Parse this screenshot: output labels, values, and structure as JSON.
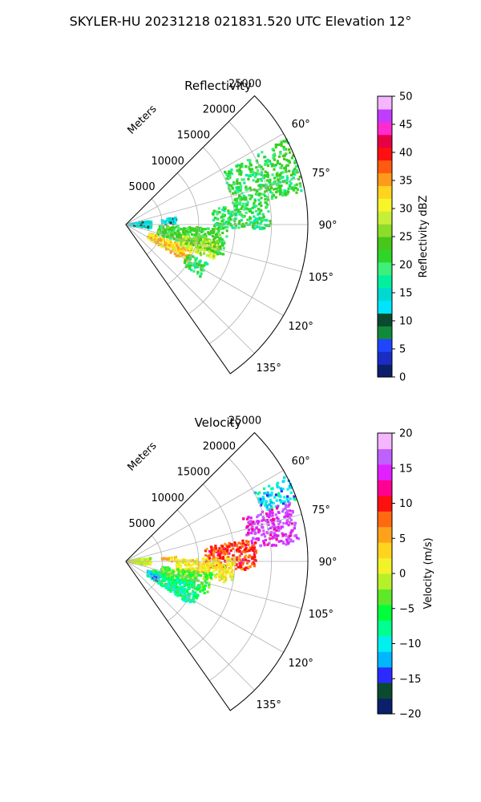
{
  "suptitle": "SKYLER-HU  20231218  021831.520 UTC Elevation 12°",
  "colors": {
    "grid": "#b0b0b0",
    "frame": "#000000",
    "reflectivity_ramp": [
      "#0b1f6b",
      "#1a2cc4",
      "#1f45ff",
      "#0f8a3a",
      "#0a4a2e",
      "#00e5ff",
      "#00d9d0",
      "#00f0a0",
      "#3cf07a",
      "#2fd62a",
      "#47c71a",
      "#8cdc2a",
      "#c6ef3a",
      "#f5f52a",
      "#ffd41f",
      "#ff9a1a",
      "#ff5a10",
      "#ff1010",
      "#e80045",
      "#ff2ad0",
      "#c03cff",
      "#f4b6ff"
    ],
    "velocity_ramp": [
      "#0b1f6b",
      "#0a4a2e",
      "#2b2bff",
      "#00b7ff",
      "#00f0f0",
      "#00ff90",
      "#00ff3a",
      "#5ee82a",
      "#b6f028",
      "#f2f22a",
      "#ffd41f",
      "#ffa21a",
      "#ff6a10",
      "#ff1010",
      "#ff0090",
      "#e020ff",
      "#c060ff",
      "#f4b6ff"
    ]
  },
  "chart_data": [
    {
      "type": "heatmap",
      "subtype": "radar-ppi-sector",
      "title": "Reflectivity",
      "radial_label": "Meters",
      "radial_ticks": [
        5000,
        10000,
        15000,
        20000,
        25000
      ],
      "rmax": 25000,
      "azimuth_range_deg": [
        45,
        145
      ],
      "angle_ticks": [
        "60°",
        "75°",
        "90°",
        "105°",
        "120°",
        "135°"
      ],
      "angle_tick_values": [
        60,
        75,
        90,
        105,
        120,
        135
      ],
      "colorbar": {
        "label": "Reflectivity dBZ",
        "min": 0,
        "max": 50,
        "ticks": [
          0,
          5,
          10,
          15,
          20,
          25,
          30,
          35,
          40,
          45,
          50
        ]
      },
      "echo_cells": [
        {
          "az": [
            62,
            80
          ],
          "r": [
            15000,
            25000
          ],
          "value": 21
        },
        {
          "az": [
            80,
            92
          ],
          "r": [
            12000,
            20000
          ],
          "value": 20
        },
        {
          "az": [
            92,
            108
          ],
          "r": [
            4500,
            14000
          ],
          "value": 22
        },
        {
          "az": [
            110,
            122
          ],
          "r": [
            3500,
            10000
          ],
          "value": 33
        },
        {
          "az": [
            100,
            112
          ],
          "r": [
            8000,
            13000
          ],
          "value": 27
        },
        {
          "az": [
            82,
            100
          ],
          "r": [
            300,
            3500
          ],
          "value": 14
        },
        {
          "az": [
            82,
            90
          ],
          "r": [
            5000,
            7000
          ],
          "value": 12
        },
        {
          "az": [
            115,
            125
          ],
          "r": [
            9500,
            12500
          ],
          "value": 20
        }
      ]
    },
    {
      "type": "heatmap",
      "subtype": "radar-ppi-sector",
      "title": "Velocity",
      "radial_label": "Meters",
      "radial_ticks": [
        5000,
        10000,
        15000,
        20000,
        25000
      ],
      "rmax": 25000,
      "azimuth_range_deg": [
        45,
        145
      ],
      "angle_ticks": [
        "60°",
        "75°",
        "90°",
        "105°",
        "120°",
        "135°"
      ],
      "angle_tick_values": [
        60,
        75,
        90,
        105,
        120,
        135
      ],
      "colorbar": {
        "label": "Velocity (m/s)",
        "min": -20,
        "max": 20,
        "ticks": [
          -20,
          -15,
          -10,
          -5,
          0,
          5,
          10,
          15,
          20
        ]
      },
      "echo_cells": [
        {
          "az": [
            62,
            70
          ],
          "r": [
            20000,
            25000
          ],
          "value": -11
        },
        {
          "az": [
            70,
            84
          ],
          "r": [
            17000,
            24000
          ],
          "value": 15
        },
        {
          "az": [
            80,
            94
          ],
          "r": [
            11000,
            18000
          ],
          "value": 9
        },
        {
          "az": [
            88,
            102
          ],
          "r": [
            7000,
            15000
          ],
          "value": 2
        },
        {
          "az": [
            98,
            112
          ],
          "r": [
            5000,
            12000
          ],
          "value": -4
        },
        {
          "az": [
            108,
            124
          ],
          "r": [
            3500,
            11000
          ],
          "value": -7
        },
        {
          "az": [
            114,
            122
          ],
          "r": [
            3000,
            5000
          ],
          "value": -12
        },
        {
          "az": [
            82,
            100
          ],
          "r": [
            300,
            3500
          ],
          "value": 0
        },
        {
          "az": [
            84,
            90
          ],
          "r": [
            5000,
            7000
          ],
          "value": 4
        }
      ]
    }
  ]
}
